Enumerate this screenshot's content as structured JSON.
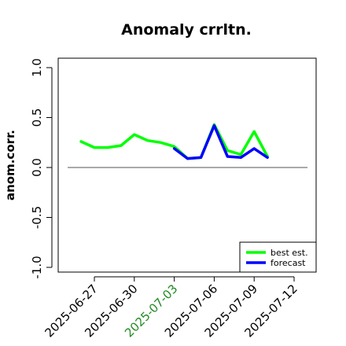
{
  "chart_data": {
    "type": "line",
    "title": "Anomaly crrltn.",
    "xlabel": "",
    "ylabel": "anom.corr.",
    "ylim": [
      -1.0,
      1.0
    ],
    "y_ticks": [
      -1.0,
      -0.5,
      0.0,
      0.5,
      1.0
    ],
    "y_tick_labels": [
      "-1.0",
      "-0.5",
      "0.0",
      "0.5",
      "1.0"
    ],
    "x_ticks": [
      "2025-06-27",
      "2025-06-30",
      "2025-07-03",
      "2025-07-06",
      "2025-07-09",
      "2025-07-12"
    ],
    "x_tick_labels": [
      "2025-06-27",
      "2025-06-30",
      "2025-07-03",
      "2025-07-06",
      "2025-07-09",
      "2025-07-12"
    ],
    "x_tick_colors": [
      "#000000",
      "#000000",
      "#228b22",
      "#000000",
      "#000000",
      "#000000"
    ],
    "reference_line": 0.0,
    "legend_position": "bottom-right",
    "series": [
      {
        "name": "best est.",
        "color": "#00ff00",
        "x": [
          "2025-06-26",
          "2025-06-27",
          "2025-06-28",
          "2025-06-29",
          "2025-06-30",
          "2025-07-01",
          "2025-07-02",
          "2025-07-03",
          "2025-07-04",
          "2025-07-05",
          "2025-07-06",
          "2025-07-07",
          "2025-07-08",
          "2025-07-09",
          "2025-07-10"
        ],
        "values": [
          0.26,
          0.2,
          0.2,
          0.22,
          0.33,
          0.27,
          0.25,
          0.21,
          0.09,
          0.1,
          0.43,
          0.17,
          0.13,
          0.36,
          0.11
        ]
      },
      {
        "name": "forecast",
        "color": "#0000ff",
        "x": [
          "2025-07-03",
          "2025-07-04",
          "2025-07-05",
          "2025-07-06",
          "2025-07-07",
          "2025-07-08",
          "2025-07-09",
          "2025-07-10"
        ],
        "values": [
          0.19,
          0.09,
          0.1,
          0.42,
          0.11,
          0.1,
          0.19,
          0.1
        ]
      }
    ]
  }
}
